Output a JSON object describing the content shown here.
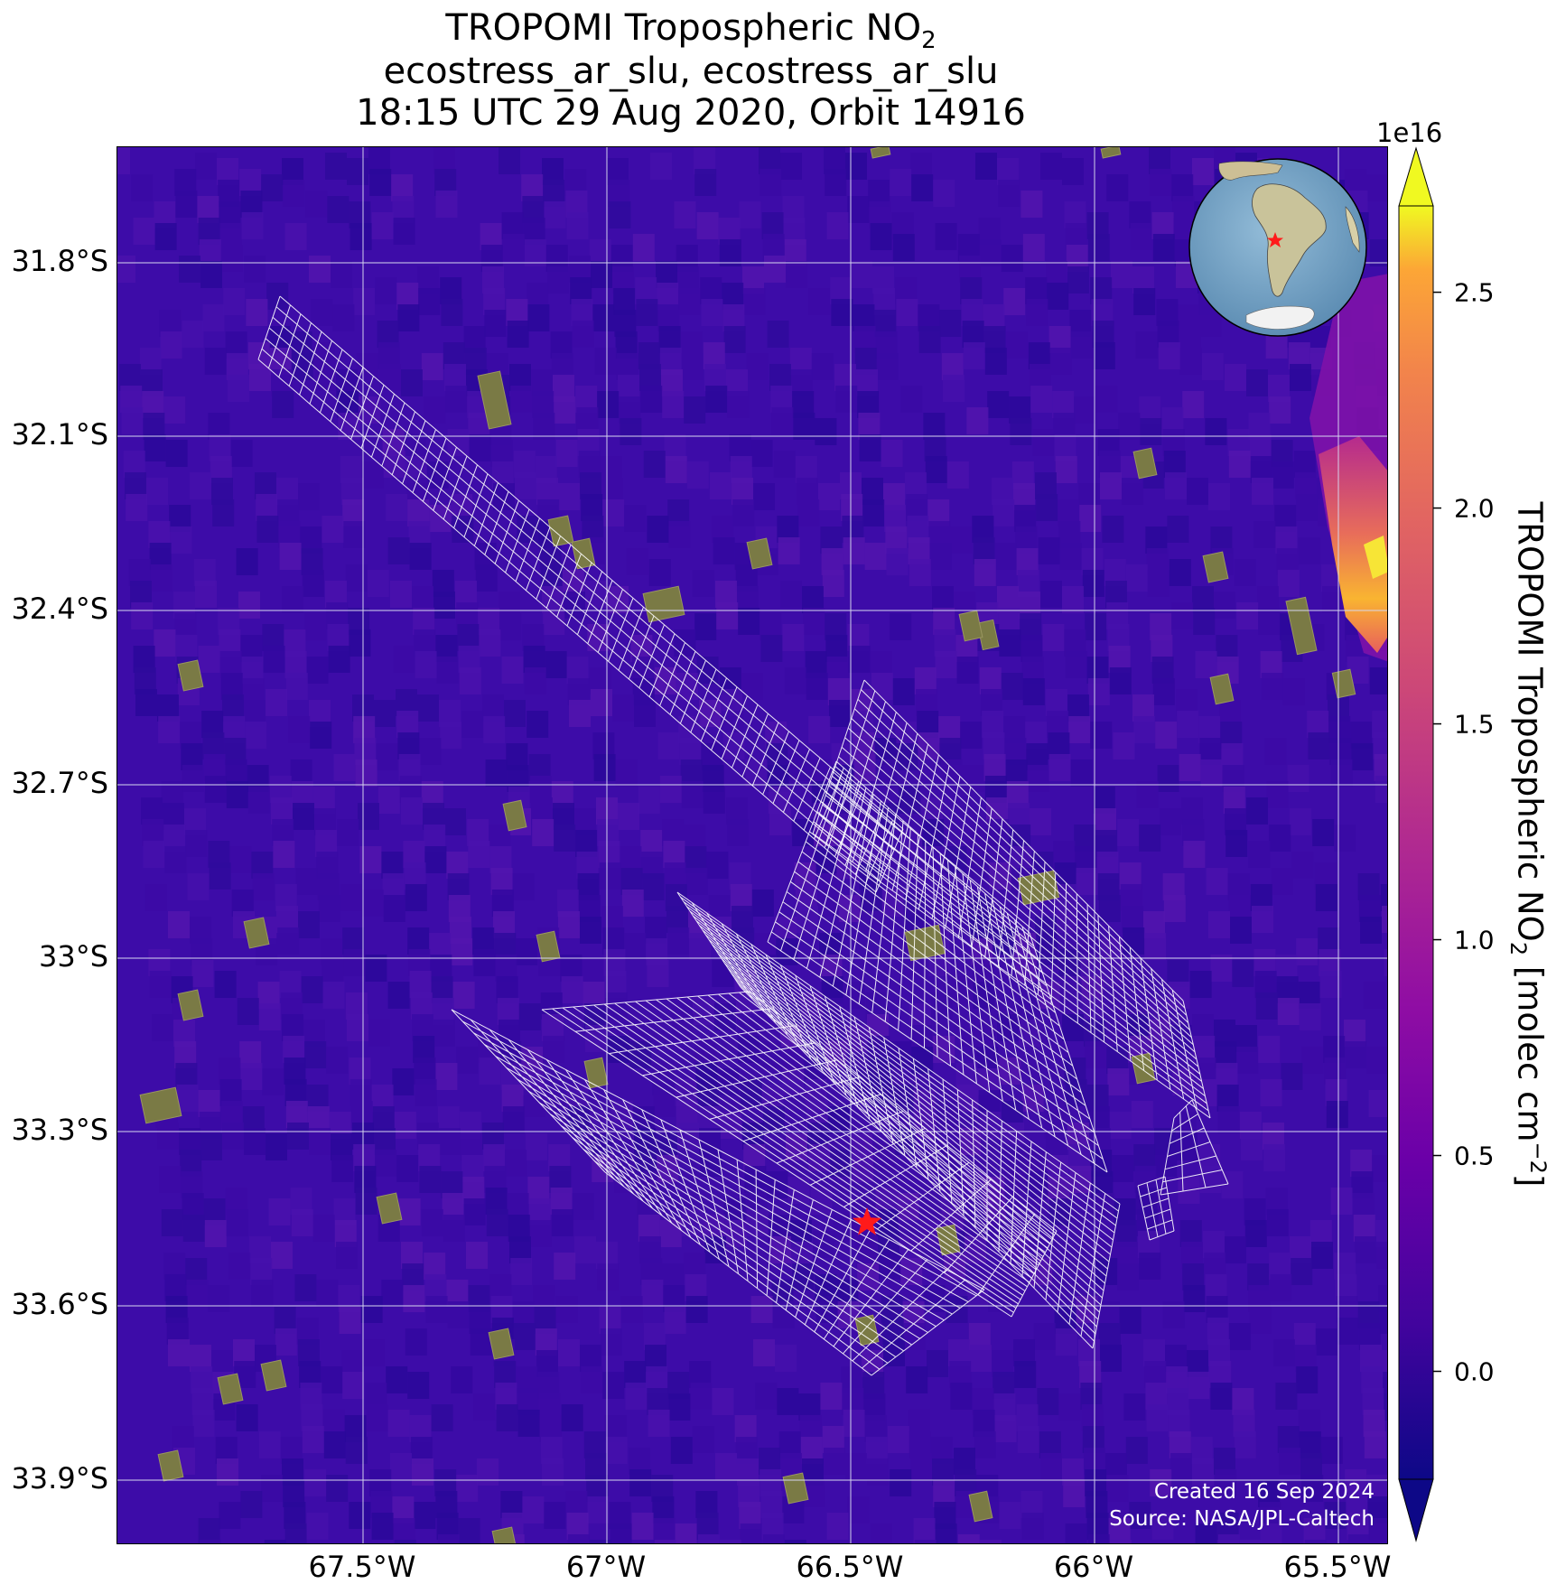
{
  "title": {
    "line1_text": "TROPOMI Tropospheric NO",
    "line1_sub": "2",
    "line2": "ecostress_ar_slu, ecostress_ar_slu",
    "line3": "18:15 UTC 29 Aug 2020, Orbit 14916"
  },
  "axes": {
    "y_tick_labels": [
      "31.8°S",
      "32.1°S",
      "32.4°S",
      "32.7°S",
      "33°S",
      "33.3°S",
      "33.6°S",
      "33.9°S"
    ],
    "x_tick_labels": [
      "67.5°W",
      "67°W",
      "66.5°W",
      "66°W",
      "65.5°W"
    ]
  },
  "colorbar": {
    "label_text": "TROPOMI Tropospheric NO",
    "label_sub": "2",
    "label_units": " [molec cm",
    "label_exp": "−2",
    "label_close": "]",
    "exponent": "1e16",
    "tick_labels": [
      "0.0",
      "0.5",
      "1.0",
      "1.5",
      "2.0",
      "2.5"
    ],
    "colormap": "plasma",
    "extend": "both"
  },
  "map": {
    "background_color": "#3a0aa8",
    "site_marker_color": "#ff1a1a",
    "grid_color": "#ffffff"
  },
  "credit": {
    "line1": "Created 16 Sep 2024",
    "line2": "Source: NASA/JPL-Caltech"
  }
}
